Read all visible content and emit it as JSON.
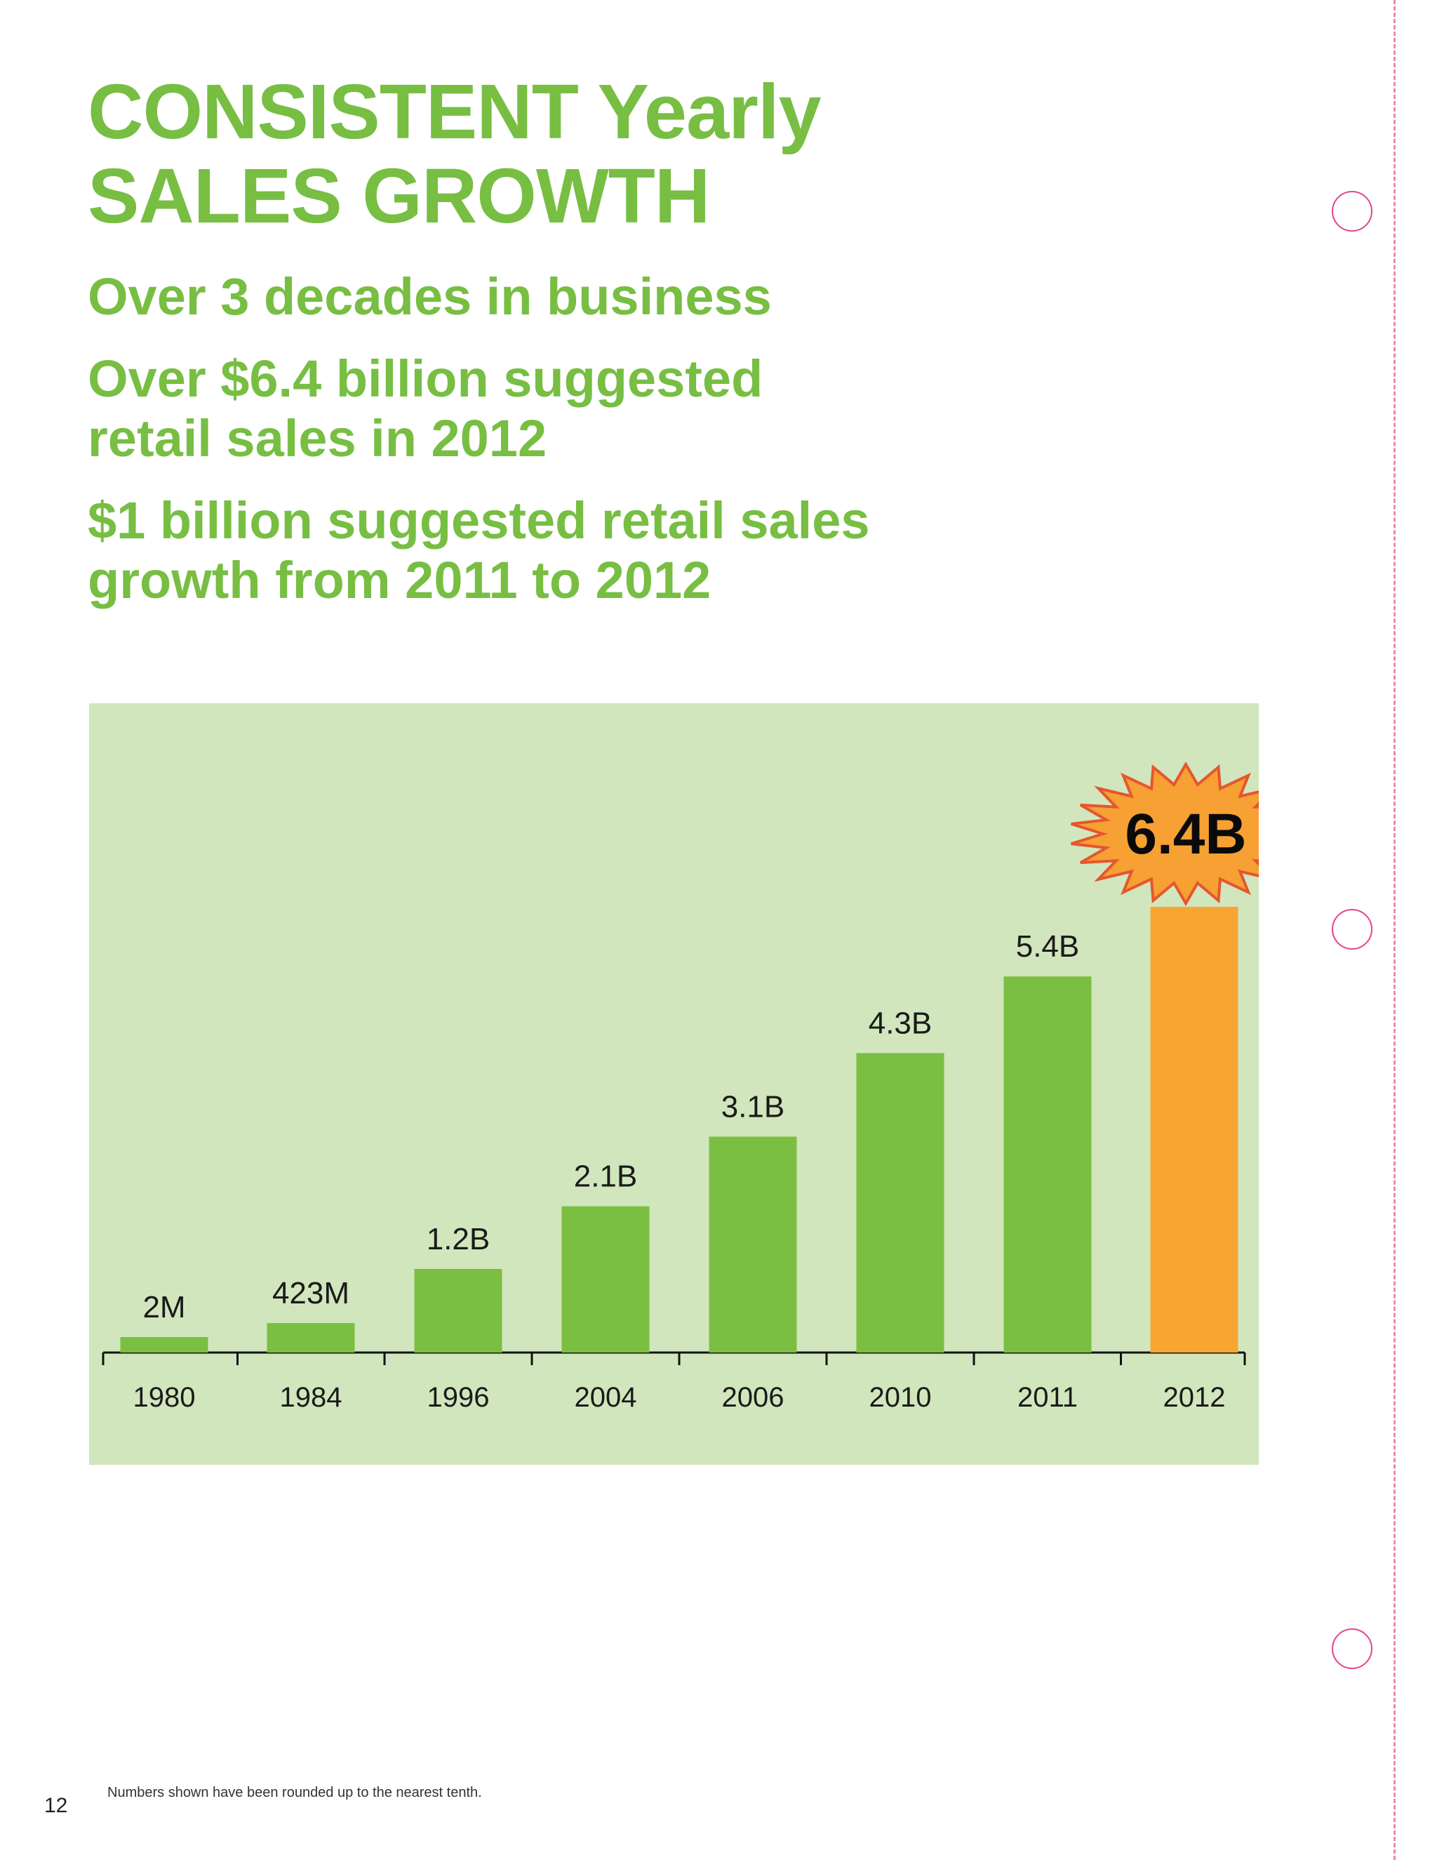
{
  "page": {
    "title_lines": [
      "CONSISTENT Yearly",
      "SALES GROWTH"
    ],
    "bullets": [
      {
        "lines": [
          "Over 3 decades in business"
        ]
      },
      {
        "lines": [
          "Over $6.4 billion suggested",
          "retail sales in 2012"
        ]
      },
      {
        "lines": [
          "$1 billion suggested retail sales",
          "growth from 2011 to 2012"
        ]
      }
    ],
    "footnote": "Numbers shown have been rounded up to the nearest tenth.",
    "page_number": "12"
  },
  "colors": {
    "accent_green": "#77be43",
    "panel_background": "#d1e6bc",
    "bar_green": "#7bbf42",
    "highlight_orange": "#f9a533",
    "burst_fill": "#f7a033",
    "burst_stroke": "#e5562f",
    "binder_pink": "#f086b4"
  },
  "chart_data": {
    "type": "bar",
    "categories": [
      "1980",
      "1984",
      "1996",
      "2004",
      "2006",
      "2010",
      "2011",
      "2012"
    ],
    "values": [
      0.002,
      0.423,
      1.2,
      2.1,
      3.1,
      4.3,
      5.4,
      6.4
    ],
    "labels": [
      "2M",
      "423M",
      "1.2B",
      "2.1B",
      "3.1B",
      "4.3B",
      "5.4B",
      "6.4B"
    ],
    "units": "billions of dollars",
    "highlight_index": 7,
    "title": "",
    "xlabel": "",
    "ylabel": "",
    "ylim": [
      0,
      6.4
    ],
    "grid": false
  }
}
